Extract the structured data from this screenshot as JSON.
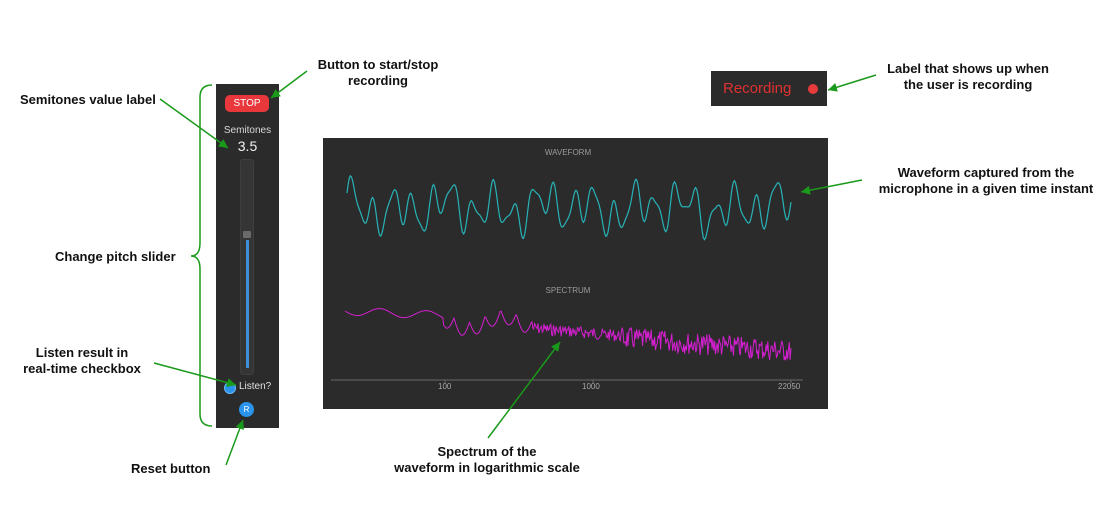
{
  "annotations": {
    "semitones_value_label": "Semitones value label",
    "start_stop_line1": "Button to start/stop",
    "start_stop_line2": "recording",
    "change_pitch": "Change pitch slider",
    "listen_line1": "Listen result in",
    "listen_line2": "real-time checkbox",
    "reset": "Reset button",
    "recording_label_line1": "Label that shows up when",
    "recording_label_line2": "the user is recording",
    "waveform_line1": "Waveform captured from the",
    "waveform_line2": "microphone in a given time instant",
    "spectrum_line1": "Spectrum of the",
    "spectrum_line2": "waveform in logarithmic scale"
  },
  "panel": {
    "stop_label": "STOP",
    "semitones_label": "Semitones",
    "semitones_value": "3.5",
    "listen_label": "Listen?",
    "listen_checked": true,
    "reset_label": "R",
    "slider_level": 0.62
  },
  "recording": {
    "label": "Recording"
  },
  "visualizer": {
    "waveform_title": "WAVEFORM",
    "spectrum_title": "SPECTRUM",
    "x_ticks": [
      "100",
      "1000",
      "22050"
    ],
    "waveform_color": "#27b3b8",
    "spectrum_color": "#d41fd0"
  },
  "colors": {
    "panel_bg": "#2b2b2b",
    "stop_button": "#e8383c",
    "accent_blue": "#2a94ec",
    "arrow_green": "#1a9a1a"
  }
}
